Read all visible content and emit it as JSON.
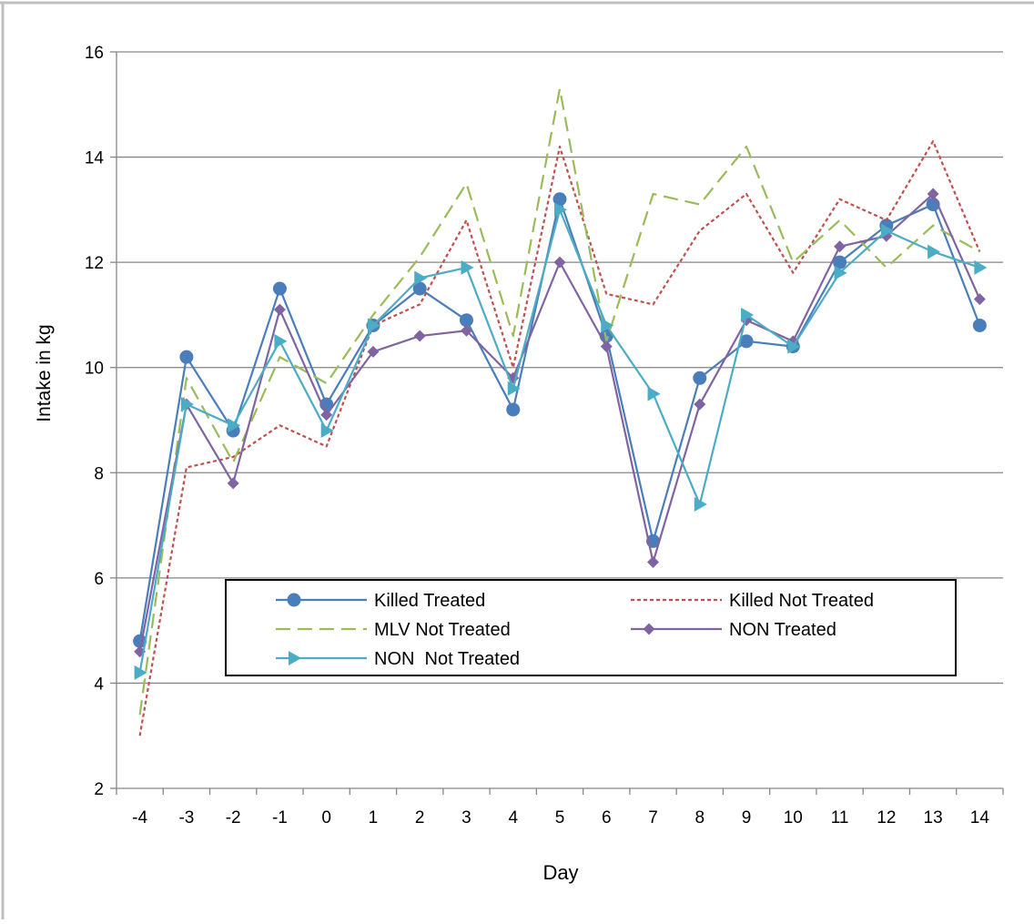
{
  "chart_data": {
    "type": "line",
    "xlabel": "Day",
    "ylabel": "Intake in kg",
    "ylim": [
      2,
      16
    ],
    "yticks": [
      2,
      4,
      6,
      8,
      10,
      12,
      14,
      16
    ],
    "categories": [
      "-4",
      "-3",
      "-2",
      "-1",
      "0",
      "1",
      "2",
      "3",
      "4",
      "5",
      "6",
      "7",
      "8",
      "9",
      "10",
      "11",
      "12",
      "13",
      "14"
    ],
    "grid": "horizontal major gridlines",
    "legend_position": "inside lower-center",
    "series": [
      {
        "name": "Killed Treated",
        "color": "#4a7ebb",
        "marker": "circle",
        "dash": "solid",
        "values": [
          4.8,
          10.2,
          8.8,
          11.5,
          9.3,
          10.8,
          11.5,
          10.9,
          9.2,
          13.2,
          10.6,
          6.7,
          9.8,
          10.5,
          10.4,
          12.0,
          12.7,
          13.1,
          10.8
        ]
      },
      {
        "name": "Killed Not Treated",
        "color": "#c0504d",
        "marker": "none",
        "dash": "dotted",
        "values": [
          3.0,
          8.1,
          8.3,
          8.9,
          8.5,
          10.8,
          11.2,
          12.8,
          10.0,
          14.2,
          11.4,
          11.2,
          12.6,
          13.3,
          11.8,
          13.2,
          12.8,
          14.3,
          12.2
        ]
      },
      {
        "name": "MLV Not Treated",
        "color": "#9bbb59",
        "marker": "none",
        "dash": "dashed",
        "values": [
          3.4,
          9.8,
          8.2,
          10.2,
          9.7,
          11.0,
          12.1,
          13.5,
          10.6,
          15.3,
          10.5,
          13.3,
          13.1,
          14.2,
          12.0,
          12.8,
          11.9,
          12.7,
          12.2
        ]
      },
      {
        "name": "NON Treated",
        "color": "#8064a2",
        "marker": "diamond",
        "dash": "solid",
        "values": [
          4.6,
          9.3,
          7.8,
          11.1,
          9.1,
          10.3,
          10.6,
          10.7,
          9.8,
          12.0,
          10.4,
          6.3,
          9.3,
          10.9,
          10.5,
          12.3,
          12.5,
          13.3,
          11.3
        ]
      },
      {
        "name": "NON  Not Treated",
        "color": "#4bacc6",
        "marker": "triangle-right",
        "dash": "solid",
        "values": [
          4.2,
          9.3,
          8.9,
          10.5,
          8.8,
          10.8,
          11.7,
          11.9,
          9.6,
          13.0,
          10.8,
          9.5,
          7.4,
          11.0,
          10.4,
          11.8,
          12.6,
          12.2,
          11.9
        ]
      }
    ]
  }
}
